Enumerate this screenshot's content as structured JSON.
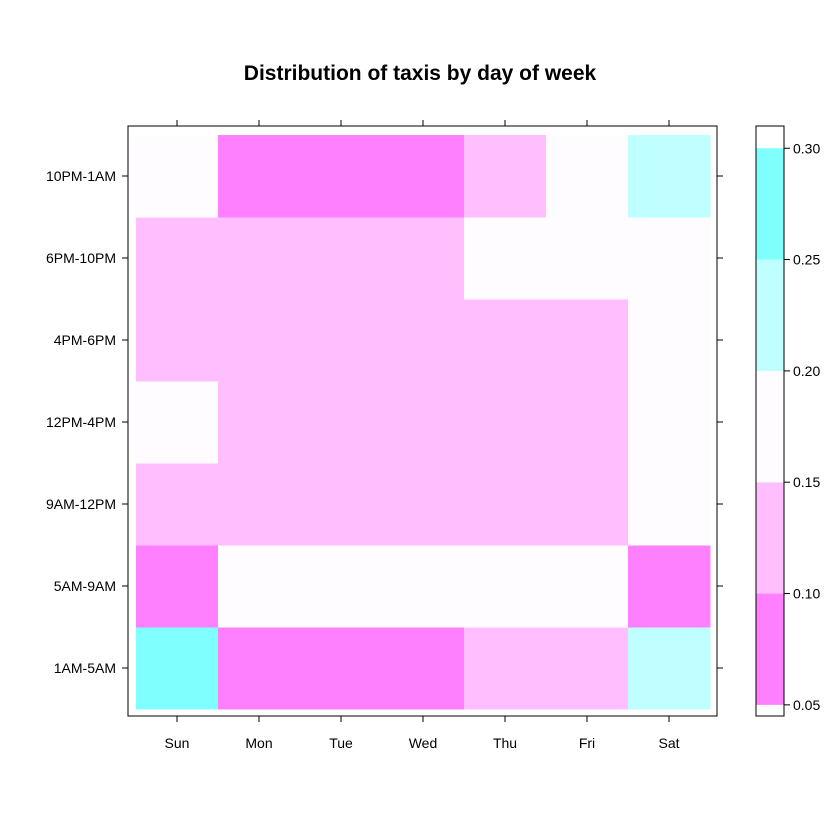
{
  "chart_data": {
    "type": "heatmap",
    "title": "Distribution of taxis by day of week",
    "xlabel": "",
    "ylabel": "",
    "x_categories": [
      "Sun",
      "Mon",
      "Tue",
      "Wed",
      "Thu",
      "Fri",
      "Sat"
    ],
    "y_categories": [
      "1AM-5AM",
      "5AM-9AM",
      "9AM-12PM",
      "12PM-4PM",
      "4PM-6PM",
      "6PM-10PM",
      "10PM-1AM"
    ],
    "values": [
      [
        0.27,
        0.08,
        0.08,
        0.08,
        0.12,
        0.12,
        0.22
      ],
      [
        0.08,
        0.18,
        0.18,
        0.18,
        0.18,
        0.18,
        0.08
      ],
      [
        0.12,
        0.12,
        0.12,
        0.12,
        0.12,
        0.12,
        0.18
      ],
      [
        0.18,
        0.12,
        0.12,
        0.12,
        0.12,
        0.12,
        0.18
      ],
      [
        0.12,
        0.12,
        0.12,
        0.12,
        0.12,
        0.12,
        0.18
      ],
      [
        0.12,
        0.12,
        0.12,
        0.12,
        0.18,
        0.18,
        0.18
      ],
      [
        0.18,
        0.08,
        0.08,
        0.08,
        0.12,
        0.18,
        0.22
      ]
    ],
    "colorkey": {
      "breaks": [
        0.05,
        0.1,
        0.15,
        0.2,
        0.25,
        0.3
      ],
      "colors": [
        "#ff80ff",
        "#ffbfff",
        "#fffcff",
        "#bfffff",
        "#80ffff"
      ],
      "tick_values": [
        0.05,
        0.1,
        0.15,
        0.2,
        0.25,
        0.3
      ],
      "tick_labels": [
        "0.05",
        "0.10",
        "0.15",
        "0.20",
        "0.25",
        "0.30"
      ],
      "range": [
        0.045,
        0.31
      ]
    },
    "legend_position": "right",
    "grid": false
  }
}
